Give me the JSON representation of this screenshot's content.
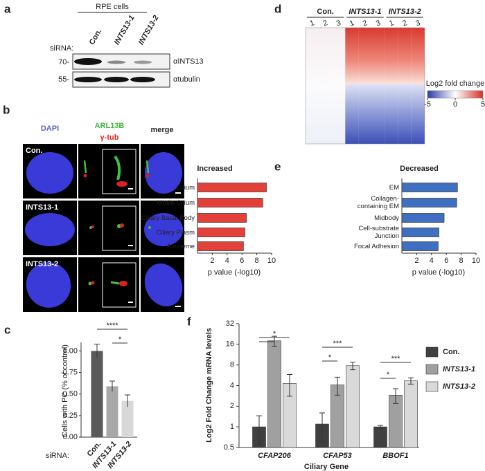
{
  "figure": {
    "panel_labels": [
      "a",
      "b",
      "c",
      "d",
      "e",
      "f"
    ],
    "blot": {
      "header": "RPE cells",
      "sirna_label": "siRNA:",
      "lanes": [
        "Con.",
        "INTS13-1",
        "INTS13-2"
      ],
      "markers": [
        "70-",
        "55-"
      ],
      "antibodies": [
        "αINTS13",
        "αtubulin"
      ]
    },
    "microscopy": {
      "columns": [
        "DAPI",
        "ARL13B",
        "γ-tub",
        "merge"
      ],
      "rows": [
        "Con.",
        "INTS13-1",
        "INTS13-2"
      ]
    }
  },
  "chart_data": [
    {
      "type": "heatmap",
      "groups": [
        "Con.",
        "INTS13-1",
        "INTS13-2"
      ],
      "replicates": [
        "1",
        "2",
        "3",
        "1",
        "2",
        "3",
        "1",
        "2",
        "3"
      ],
      "colorbar_title": "Log2 fold change",
      "clim": [
        -5,
        5
      ],
      "cticks": [
        -5,
        0,
        5
      ]
    },
    {
      "type": "hbar",
      "title": "Increased",
      "categories": [
        "Cilium",
        "Motile Cilium",
        "Ciliary Basal Body",
        "Ciliary Plasm",
        "Axoneme"
      ],
      "values": [
        9.3,
        8.8,
        6.6,
        6.4,
        6.2
      ],
      "color": "#e3403a",
      "xlabel": "p value (-log10)",
      "xlim": [
        0,
        10
      ],
      "xticks": [
        2,
        4,
        6,
        8,
        10
      ]
    },
    {
      "type": "hbar",
      "title": "Decreased",
      "categories": [
        "EM",
        "Collagen-containing EM",
        "Midbody",
        "Cell-substrate Junction",
        "Focal Adhesion"
      ],
      "values": [
        7.5,
        7.4,
        5.7,
        5.0,
        4.9
      ],
      "color": "#3f6fc0",
      "xlabel": "p value (-log10)",
      "xlim": [
        0,
        10
      ],
      "xticks": [
        2,
        4,
        6,
        8,
        10
      ]
    },
    {
      "type": "bar",
      "categories": [
        "Con.",
        "INTS13-1",
        "INTS13-2"
      ],
      "values": [
        1.0,
        0.59,
        0.42
      ],
      "errors": [
        0.08,
        0.06,
        0.07
      ],
      "colors": [
        "#5a5a5a",
        "#a8a8a8",
        "#d8d8d8"
      ],
      "ylabel": "Cells with PC (% of control)",
      "xlabel": "siRNA:",
      "ylim": [
        0,
        1.1
      ],
      "yticks": [
        {
          "value": 0,
          "label": "0.00"
        },
        {
          "value": 0.25,
          "label": "0.25"
        },
        {
          "value": 0.5,
          "label": "0.50"
        },
        {
          "value": 0.75,
          "label": "0.75"
        },
        {
          "value": 1,
          "label": "1.00"
        }
      ],
      "annotations": [
        "****",
        "*"
      ]
    },
    {
      "type": "grouped_bar",
      "log_base": 2,
      "categories": [
        "CFAP206",
        "CFAP53",
        "BBOF1"
      ],
      "series": [
        {
          "name": "Con.",
          "color": "#404040",
          "values": [
            1.0,
            1.1,
            1.0
          ],
          "errors": [
            0.45,
            0.5,
            0.05
          ]
        },
        {
          "name": "INTS13-1",
          "color": "#a0a0a0",
          "values": [
            18,
            4.1,
            2.9
          ],
          "errors": [
            3,
            1.2,
            0.7
          ]
        },
        {
          "name": "INTS13-2",
          "color": "#d9d9d9",
          "values": [
            4.3,
            7.8,
            4.7
          ],
          "errors": [
            1.5,
            1,
            0.5
          ]
        }
      ],
      "ylim": [
        0.5,
        32
      ],
      "yticks": [
        0.5,
        1,
        2,
        4,
        8,
        16,
        32
      ],
      "ylabel": "Log2 Fold Change mRNA levels",
      "xlabel": "Ciliary Gene",
      "annotations": [
        "*",
        "*",
        "***",
        "*",
        "***"
      ]
    }
  ]
}
